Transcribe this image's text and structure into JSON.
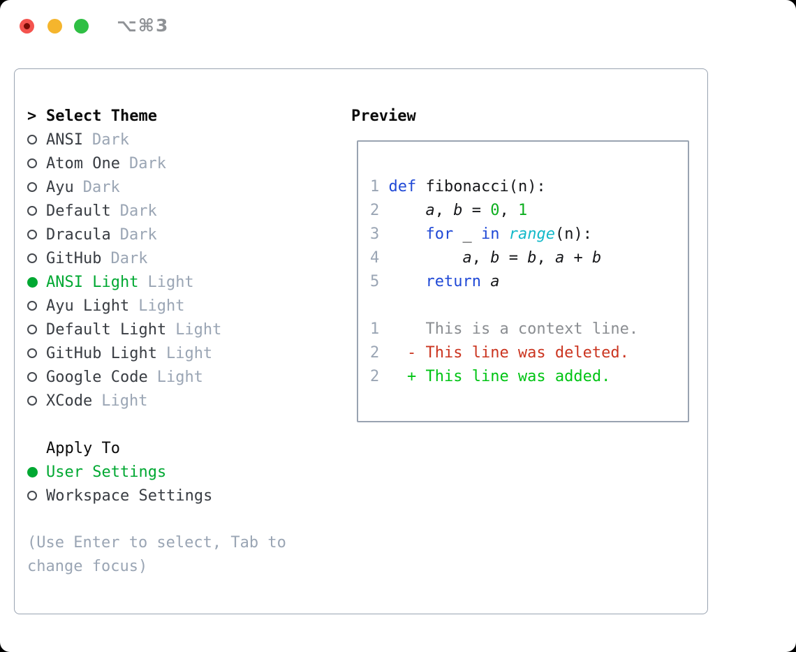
{
  "window": {
    "title": "⌥⌘3",
    "traffic_lights": [
      "close",
      "minimize",
      "zoom"
    ]
  },
  "panel": {
    "select_theme_prefix": ">",
    "select_theme_heading": "Select Theme",
    "themes": [
      {
        "name": "ANSI",
        "variant": "Dark",
        "selected": false
      },
      {
        "name": "Atom One",
        "variant": "Dark",
        "selected": false
      },
      {
        "name": "Ayu",
        "variant": "Dark",
        "selected": false
      },
      {
        "name": "Default",
        "variant": "Dark",
        "selected": false
      },
      {
        "name": "Dracula",
        "variant": "Dark",
        "selected": false
      },
      {
        "name": "GitHub",
        "variant": "Dark",
        "selected": false
      },
      {
        "name": "ANSI Light",
        "variant": "Light",
        "selected": true
      },
      {
        "name": "Ayu Light",
        "variant": "Light",
        "selected": false
      },
      {
        "name": "Default Light",
        "variant": "Light",
        "selected": false
      },
      {
        "name": "GitHub Light",
        "variant": "Light",
        "selected": false
      },
      {
        "name": "Google Code",
        "variant": "Light",
        "selected": false
      },
      {
        "name": "XCode",
        "variant": "Light",
        "selected": false
      }
    ],
    "apply_to_heading": "Apply To",
    "apply_options": [
      {
        "label": "User Settings",
        "selected": true
      },
      {
        "label": "Workspace Settings",
        "selected": false
      }
    ],
    "hint_lines": [
      "(Use Enter to select, Tab to",
      "change focus)"
    ]
  },
  "preview": {
    "heading": "Preview",
    "code_lines": [
      {
        "num": "1",
        "tokens": [
          {
            "t": "def",
            "c": "kw"
          },
          {
            "t": " fibonacci(n):",
            "c": "plain"
          }
        ]
      },
      {
        "num": "2",
        "tokens": [
          {
            "t": "    ",
            "c": "plain"
          },
          {
            "t": "a",
            "c": "var"
          },
          {
            "t": ", ",
            "c": "plain"
          },
          {
            "t": "b",
            "c": "var"
          },
          {
            "t": " = ",
            "c": "plain"
          },
          {
            "t": "0",
            "c": "num"
          },
          {
            "t": ", ",
            "c": "plain"
          },
          {
            "t": "1",
            "c": "num"
          }
        ]
      },
      {
        "num": "3",
        "tokens": [
          {
            "t": "    ",
            "c": "plain"
          },
          {
            "t": "for",
            "c": "kw"
          },
          {
            "t": " _ ",
            "c": "plain"
          },
          {
            "t": "in",
            "c": "kw"
          },
          {
            "t": " ",
            "c": "plain"
          },
          {
            "t": "range",
            "c": "fn"
          },
          {
            "t": "(n):",
            "c": "plain"
          }
        ]
      },
      {
        "num": "4",
        "tokens": [
          {
            "t": "        ",
            "c": "plain"
          },
          {
            "t": "a",
            "c": "var"
          },
          {
            "t": ", ",
            "c": "plain"
          },
          {
            "t": "b",
            "c": "var"
          },
          {
            "t": " = ",
            "c": "plain"
          },
          {
            "t": "b",
            "c": "var"
          },
          {
            "t": ", ",
            "c": "plain"
          },
          {
            "t": "a",
            "c": "var"
          },
          {
            "t": " + ",
            "c": "plain"
          },
          {
            "t": "b",
            "c": "var"
          }
        ]
      },
      {
        "num": "5",
        "tokens": [
          {
            "t": "    ",
            "c": "plain"
          },
          {
            "t": "return",
            "c": "kw"
          },
          {
            "t": " ",
            "c": "plain"
          },
          {
            "t": "a",
            "c": "var"
          }
        ]
      }
    ],
    "diff_lines": [
      {
        "num": "1",
        "tokens": [
          {
            "t": "    This is a context line.",
            "c": "ctx"
          }
        ]
      },
      {
        "num": "2",
        "tokens": [
          {
            "t": "  - This line was deleted.",
            "c": "del"
          }
        ]
      },
      {
        "num": "2",
        "tokens": [
          {
            "t": "  + This line was added.",
            "c": "add"
          }
        ]
      }
    ]
  },
  "colors": {
    "accent_green": "#00a832",
    "keyword_blue": "#2049d6",
    "builtin_cyan": "#13b9c9",
    "number_green": "#0cae1e",
    "added_green": "#00c414",
    "deleted_red": "#cb3520",
    "context_gray": "#8a8d91",
    "muted": "#9aa5b4",
    "text_dark": "#383c42",
    "heading_black": "#0a0a0a",
    "code_text": "#16171a",
    "border": "#99a3b1",
    "traffic_red": "#f4534e",
    "traffic_red_dot": "#7a0c05",
    "traffic_yellow": "#f5b52d",
    "traffic_green": "#2fbf44",
    "title_gray": "#8f9296",
    "window_bg": "#ffffff",
    "page_bg": "#000000"
  }
}
